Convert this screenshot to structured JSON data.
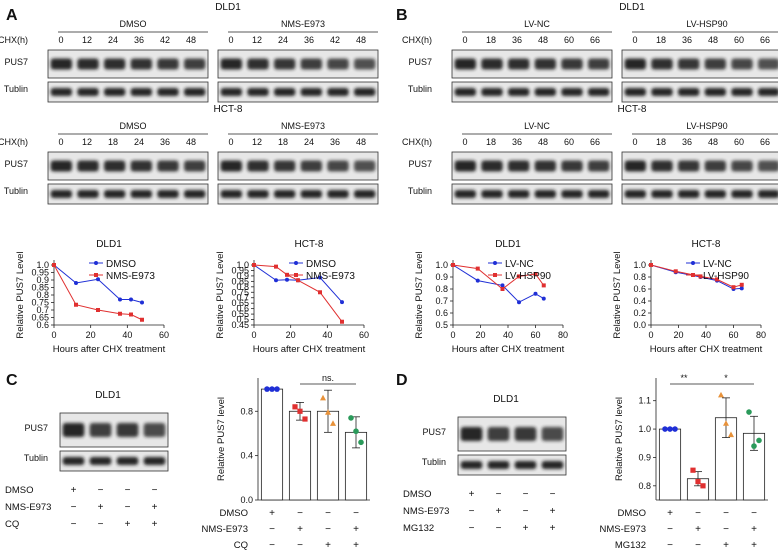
{
  "panels": {
    "A": {
      "letter": "A",
      "blots": [
        {
          "cell": "DLD1",
          "cond_labels": [
            "DMSO",
            "NMS-E973"
          ],
          "times": [
            [
              "0",
              "12",
              "24",
              "36",
              "42",
              "48"
            ],
            [
              "0",
              "12",
              "24",
              "36",
              "42",
              "48"
            ]
          ],
          "row_labels": [
            "CHX(h)",
            "PUS7",
            "Tublin"
          ]
        },
        {
          "cell": "HCT-8",
          "cond_labels": [
            "DMSO",
            "NMS-E973"
          ],
          "times": [
            [
              "0",
              "12",
              "18",
              "24",
              "36",
              "48"
            ],
            [
              "0",
              "12",
              "18",
              "24",
              "36",
              "48"
            ]
          ],
          "row_labels": [
            "CHX(h)",
            "PUS7",
            "Tublin"
          ]
        }
      ]
    },
    "B": {
      "letter": "B",
      "blots": [
        {
          "cell": "DLD1",
          "cond_labels": [
            "LV-NC",
            "LV-HSP90"
          ],
          "times": [
            [
              "0",
              "18",
              "36",
              "48",
              "60",
              "66"
            ],
            [
              "0",
              "18",
              "36",
              "48",
              "60",
              "66"
            ]
          ],
          "row_labels": [
            "CHX(h)",
            "PUS7",
            "Tublin"
          ]
        },
        {
          "cell": "HCT-8",
          "cond_labels": [
            "LV-NC",
            "LV-HSP90"
          ],
          "times": [
            [
              "0",
              "18",
              "36",
              "48",
              "60",
              "66"
            ],
            [
              "0",
              "18",
              "36",
              "48",
              "60",
              "66"
            ]
          ],
          "row_labels": [
            "CHX(h)",
            "PUS7",
            "Tublin"
          ]
        }
      ]
    },
    "C": {
      "letter": "C",
      "blot": {
        "cell": "DLD1",
        "row_labels": [
          "PUS7",
          "Tublin"
        ]
      },
      "treatments": [
        {
          "name": "DMSO",
          "signs": [
            "+",
            "−",
            "−",
            "−"
          ]
        },
        {
          "name": "NMS-E973",
          "signs": [
            "−",
            "+",
            "−",
            "+"
          ]
        },
        {
          "name": "CQ",
          "signs": [
            "−",
            "−",
            "+",
            "+"
          ]
        }
      ]
    },
    "D": {
      "letter": "D",
      "blot": {
        "cell": "DLD1",
        "row_labels": [
          "PUS7",
          "Tublin"
        ]
      },
      "treatments": [
        {
          "name": "DMSO",
          "signs": [
            "+",
            "−",
            "−",
            "−"
          ]
        },
        {
          "name": "NMS-E973",
          "signs": [
            "−",
            "+",
            "−",
            "+"
          ]
        },
        {
          "name": "MG132",
          "signs": [
            "−",
            "−",
            "+",
            "+"
          ]
        }
      ]
    }
  },
  "chart_data": [
    {
      "id": "A-DLD1",
      "type": "line",
      "title": "DLD1",
      "xlabel": "Hours after CHX treatment",
      "ylabel": "Relative PUS7 Level",
      "xlim": [
        0,
        60
      ],
      "ylim": [
        0.6,
        1.0
      ],
      "xticks": [
        "0",
        "20",
        "40",
        "60"
      ],
      "yticks": [
        "0.6",
        "0.65",
        "0.7",
        "0.75",
        "0.8",
        "0.85",
        "0.9",
        "0.95",
        "1.0"
      ],
      "legend": "top-right",
      "series": [
        {
          "name": "DMSO",
          "color": "#1f2fd6",
          "marker": "circle",
          "x": [
            0,
            12,
            24,
            36,
            42,
            48
          ],
          "y": [
            1.0,
            0.88,
            0.905,
            0.77,
            0.77,
            0.75
          ]
        },
        {
          "name": "NMS-E973",
          "color": "#e03030",
          "marker": "square",
          "x": [
            0,
            12,
            24,
            36,
            42,
            48
          ],
          "y": [
            1.0,
            0.735,
            0.7,
            0.675,
            0.67,
            0.635
          ]
        }
      ]
    },
    {
      "id": "A-HCT8",
      "type": "line",
      "title": "HCT-8",
      "xlabel": "Hours after CHX treatment",
      "ylabel": "Relative PUS7 Level",
      "xlim": [
        0,
        60
      ],
      "ylim": [
        0.45,
        1.0
      ],
      "xticks": [
        "0",
        "20",
        "40",
        "60"
      ],
      "yticks": [
        "0.45",
        "0.5",
        "0.55",
        "0.6",
        "0.65",
        "0.7",
        "0.75",
        "0.8",
        "0.85",
        "0.9",
        "0.95",
        "1.0"
      ],
      "legend": "top-right",
      "series": [
        {
          "name": "DMSO",
          "color": "#1f2fd6",
          "marker": "circle",
          "x": [
            0,
            12,
            18,
            24,
            36,
            48
          ],
          "y": [
            1.0,
            0.86,
            0.865,
            0.86,
            0.885,
            0.66
          ]
        },
        {
          "name": "NMS-E973",
          "color": "#e03030",
          "marker": "square",
          "x": [
            0,
            12,
            18,
            24,
            36,
            48
          ],
          "y": [
            1.0,
            0.985,
            0.91,
            0.86,
            0.75,
            0.48
          ]
        }
      ]
    },
    {
      "id": "B-DLD1",
      "type": "line",
      "title": "DLD1",
      "xlabel": "Hours after CHX treatment",
      "ylabel": "Relative PUS7 Level",
      "xlim": [
        0,
        80
      ],
      "ylim": [
        0.5,
        1.0
      ],
      "xticks": [
        "0",
        "20",
        "40",
        "60",
        "80"
      ],
      "yticks": [
        "0.5",
        "0.6",
        "0.7",
        "0.8",
        "0.9",
        "1.0"
      ],
      "legend": "top-right",
      "series": [
        {
          "name": "LV-NC",
          "color": "#1f2fd6",
          "marker": "circle",
          "x": [
            0,
            18,
            36,
            48,
            60,
            66
          ],
          "y": [
            1.0,
            0.87,
            0.83,
            0.69,
            0.76,
            0.72
          ]
        },
        {
          "name": "LV-HSP90",
          "color": "#e03030",
          "marker": "square",
          "x": [
            0,
            18,
            36,
            48,
            60,
            66
          ],
          "y": [
            1.0,
            0.97,
            0.8,
            0.905,
            0.925,
            0.83
          ]
        }
      ]
    },
    {
      "id": "B-HCT8",
      "type": "line",
      "title": "HCT-8",
      "xlabel": "Hours after CHX treatment",
      "ylabel": "Relative PUS7 Level",
      "xlim": [
        0,
        80
      ],
      "ylim": [
        0.0,
        1.0
      ],
      "xticks": [
        "0",
        "20",
        "40",
        "60",
        "80"
      ],
      "yticks": [
        "0.0",
        "0.2",
        "0.4",
        "0.6",
        "0.8",
        "1.0"
      ],
      "legend": "top-right",
      "series": [
        {
          "name": "LV-NC",
          "color": "#1f2fd6",
          "marker": "circle",
          "x": [
            0,
            18,
            36,
            48,
            60,
            66
          ],
          "y": [
            1.0,
            0.88,
            0.8,
            0.74,
            0.6,
            0.61
          ]
        },
        {
          "name": "LV-HSP90",
          "color": "#e03030",
          "marker": "square",
          "x": [
            0,
            18,
            36,
            48,
            60,
            66
          ],
          "y": [
            1.0,
            0.895,
            0.81,
            0.76,
            0.63,
            0.67
          ]
        }
      ]
    },
    {
      "id": "C-bar",
      "type": "bar",
      "ylabel": "Relative PUS7 level",
      "ylim": [
        0,
        1.1
      ],
      "yticks": [
        "0.0",
        "0.4",
        "0.8"
      ],
      "categories": [
        "1",
        "2",
        "3",
        "4"
      ],
      "values": [
        1.0,
        0.8,
        0.8,
        0.61
      ],
      "errors": [
        0.0,
        0.08,
        0.19,
        0.14
      ],
      "dot_colors": [
        "#1f2fd6",
        "#e03030",
        "#e8923a",
        "#2a9a5a"
      ],
      "dots": [
        [
          1.0,
          1.0,
          1.0
        ],
        [
          0.84,
          0.8,
          0.73
        ],
        [
          0.92,
          0.79,
          0.69
        ],
        [
          0.74,
          0.62,
          0.52
        ]
      ],
      "sig": [
        {
          "label": "ns.",
          "from": 1,
          "to": 3
        }
      ]
    },
    {
      "id": "D-bar",
      "type": "bar",
      "ylabel": "Relative PUS7 level",
      "ylim": [
        0.75,
        1.18
      ],
      "yticks": [
        "0.8",
        "0.9",
        "1.0",
        "1.1"
      ],
      "categories": [
        "1",
        "2",
        "3",
        "4"
      ],
      "values": [
        1.0,
        0.825,
        1.04,
        0.985
      ],
      "errors": [
        0.0,
        0.025,
        0.07,
        0.06
      ],
      "dot_colors": [
        "#1f2fd6",
        "#e03030",
        "#e8923a",
        "#2a9a5a"
      ],
      "dots": [
        [
          1.0,
          1.0,
          1.0
        ],
        [
          0.855,
          0.815,
          0.8
        ],
        [
          1.12,
          1.02,
          0.98
        ],
        [
          1.06,
          0.94,
          0.96
        ]
      ],
      "sig": [
        {
          "label": "**",
          "from": 0,
          "to": 1
        },
        {
          "label": "*",
          "from": 1,
          "to": 3
        }
      ]
    }
  ]
}
